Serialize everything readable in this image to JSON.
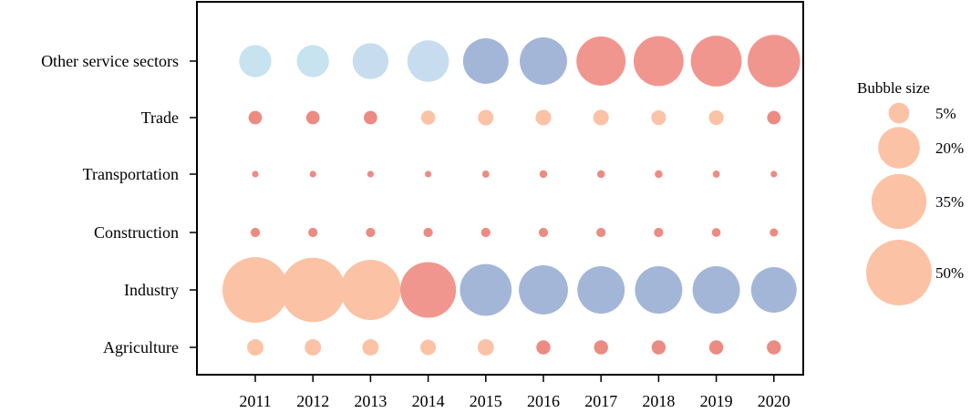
{
  "chart_data": {
    "type": "scatter",
    "title": "",
    "xlabel": "",
    "ylabel": "",
    "categories_x": [
      "2011",
      "2012",
      "2013",
      "2014",
      "2015",
      "2016",
      "2017",
      "2018",
      "2019",
      "2020"
    ],
    "categories_y": [
      "Agriculture",
      "Industry",
      "Construction",
      "Transportation",
      "Trade",
      "Other service sectors"
    ],
    "grid": false,
    "legend": {
      "title": "Bubble size",
      "placement": "right",
      "entries": [
        {
          "label": "5%",
          "value": 5
        },
        {
          "label": "20%",
          "value": 20
        },
        {
          "label": "35%",
          "value": 35
        },
        {
          "label": "50%",
          "value": 50
        }
      ]
    },
    "colors": {
      "pale_blue": "#c6e3ef",
      "light_blue": "#c7dcef",
      "slate_blue": "#a3b6d8",
      "salmon": "#f0968f",
      "peach": "#fcc2a5",
      "red_dot": "#ec8b82",
      "legend": "#fcc2a5"
    },
    "points": [
      {
        "sector": "Other service sectors",
        "year": "2011",
        "value": 12,
        "color": "pale_blue"
      },
      {
        "sector": "Other service sectors",
        "year": "2012",
        "value": 12,
        "color": "pale_blue"
      },
      {
        "sector": "Other service sectors",
        "year": "2013",
        "value": 15,
        "color": "light_blue"
      },
      {
        "sector": "Other service sectors",
        "year": "2014",
        "value": 20,
        "color": "light_blue"
      },
      {
        "sector": "Other service sectors",
        "year": "2015",
        "value": 24,
        "color": "slate_blue"
      },
      {
        "sector": "Other service sectors",
        "year": "2016",
        "value": 26,
        "color": "slate_blue"
      },
      {
        "sector": "Other service sectors",
        "year": "2017",
        "value": 28,
        "color": "salmon"
      },
      {
        "sector": "Other service sectors",
        "year": "2018",
        "value": 29,
        "color": "salmon"
      },
      {
        "sector": "Other service sectors",
        "year": "2019",
        "value": 30,
        "color": "salmon"
      },
      {
        "sector": "Other service sectors",
        "year": "2020",
        "value": 32,
        "color": "salmon"
      },
      {
        "sector": "Trade",
        "year": "2011",
        "value": 2.1,
        "color": "red_dot"
      },
      {
        "sector": "Trade",
        "year": "2012",
        "value": 2.1,
        "color": "red_dot"
      },
      {
        "sector": "Trade",
        "year": "2013",
        "value": 2.1,
        "color": "red_dot"
      },
      {
        "sector": "Trade",
        "year": "2014",
        "value": 2.3,
        "color": "peach"
      },
      {
        "sector": "Trade",
        "year": "2015",
        "value": 2.8,
        "color": "peach"
      },
      {
        "sector": "Trade",
        "year": "2016",
        "value": 2.8,
        "color": "peach"
      },
      {
        "sector": "Trade",
        "year": "2017",
        "value": 2.8,
        "color": "peach"
      },
      {
        "sector": "Trade",
        "year": "2018",
        "value": 2.5,
        "color": "peach"
      },
      {
        "sector": "Trade",
        "year": "2019",
        "value": 2.5,
        "color": "peach"
      },
      {
        "sector": "Trade",
        "year": "2020",
        "value": 2.1,
        "color": "red_dot"
      },
      {
        "sector": "Transportation",
        "year": "2011",
        "value": 0.5,
        "color": "red_dot"
      },
      {
        "sector": "Transportation",
        "year": "2012",
        "value": 0.5,
        "color": "red_dot"
      },
      {
        "sector": "Transportation",
        "year": "2013",
        "value": 0.5,
        "color": "red_dot"
      },
      {
        "sector": "Transportation",
        "year": "2014",
        "value": 0.5,
        "color": "red_dot"
      },
      {
        "sector": "Transportation",
        "year": "2015",
        "value": 0.6,
        "color": "red_dot"
      },
      {
        "sector": "Transportation",
        "year": "2016",
        "value": 0.7,
        "color": "red_dot"
      },
      {
        "sector": "Transportation",
        "year": "2017",
        "value": 0.7,
        "color": "red_dot"
      },
      {
        "sector": "Transportation",
        "year": "2018",
        "value": 0.7,
        "color": "red_dot"
      },
      {
        "sector": "Transportation",
        "year": "2019",
        "value": 0.6,
        "color": "red_dot"
      },
      {
        "sector": "Transportation",
        "year": "2020",
        "value": 0.5,
        "color": "red_dot"
      },
      {
        "sector": "Construction",
        "year": "2011",
        "value": 1.0,
        "color": "red_dot"
      },
      {
        "sector": "Construction",
        "year": "2012",
        "value": 1.0,
        "color": "red_dot"
      },
      {
        "sector": "Construction",
        "year": "2013",
        "value": 1.0,
        "color": "red_dot"
      },
      {
        "sector": "Construction",
        "year": "2014",
        "value": 1.0,
        "color": "red_dot"
      },
      {
        "sector": "Construction",
        "year": "2015",
        "value": 1.0,
        "color": "red_dot"
      },
      {
        "sector": "Construction",
        "year": "2016",
        "value": 1.0,
        "color": "red_dot"
      },
      {
        "sector": "Construction",
        "year": "2017",
        "value": 1.0,
        "color": "red_dot"
      },
      {
        "sector": "Construction",
        "year": "2018",
        "value": 1.0,
        "color": "red_dot"
      },
      {
        "sector": "Construction",
        "year": "2019",
        "value": 0.9,
        "color": "red_dot"
      },
      {
        "sector": "Construction",
        "year": "2020",
        "value": 0.8,
        "color": "red_dot"
      },
      {
        "sector": "Industry",
        "year": "2011",
        "value": 50,
        "color": "peach"
      },
      {
        "sector": "Industry",
        "year": "2012",
        "value": 48,
        "color": "peach"
      },
      {
        "sector": "Industry",
        "year": "2013",
        "value": 42,
        "color": "peach"
      },
      {
        "sector": "Industry",
        "year": "2014",
        "value": 36,
        "color": "salmon"
      },
      {
        "sector": "Industry",
        "year": "2015",
        "value": 31,
        "color": "slate_blue"
      },
      {
        "sector": "Industry",
        "year": "2016",
        "value": 28,
        "color": "slate_blue"
      },
      {
        "sector": "Industry",
        "year": "2017",
        "value": 26,
        "color": "slate_blue"
      },
      {
        "sector": "Industry",
        "year": "2018",
        "value": 26,
        "color": "slate_blue"
      },
      {
        "sector": "Industry",
        "year": "2019",
        "value": 26,
        "color": "slate_blue"
      },
      {
        "sector": "Industry",
        "year": "2020",
        "value": 24,
        "color": "slate_blue"
      },
      {
        "sector": "Agriculture",
        "year": "2011",
        "value": 3.1,
        "color": "peach"
      },
      {
        "sector": "Agriculture",
        "year": "2012",
        "value": 3.1,
        "color": "peach"
      },
      {
        "sector": "Agriculture",
        "year": "2013",
        "value": 3.1,
        "color": "peach"
      },
      {
        "sector": "Agriculture",
        "year": "2014",
        "value": 2.8,
        "color": "peach"
      },
      {
        "sector": "Agriculture",
        "year": "2015",
        "value": 3.1,
        "color": "peach"
      },
      {
        "sector": "Agriculture",
        "year": "2016",
        "value": 2.3,
        "color": "red_dot"
      },
      {
        "sector": "Agriculture",
        "year": "2017",
        "value": 2.3,
        "color": "red_dot"
      },
      {
        "sector": "Agriculture",
        "year": "2018",
        "value": 2.3,
        "color": "red_dot"
      },
      {
        "sector": "Agriculture",
        "year": "2019",
        "value": 2.3,
        "color": "red_dot"
      },
      {
        "sector": "Agriculture",
        "year": "2020",
        "value": 2.3,
        "color": "red_dot"
      }
    ]
  }
}
